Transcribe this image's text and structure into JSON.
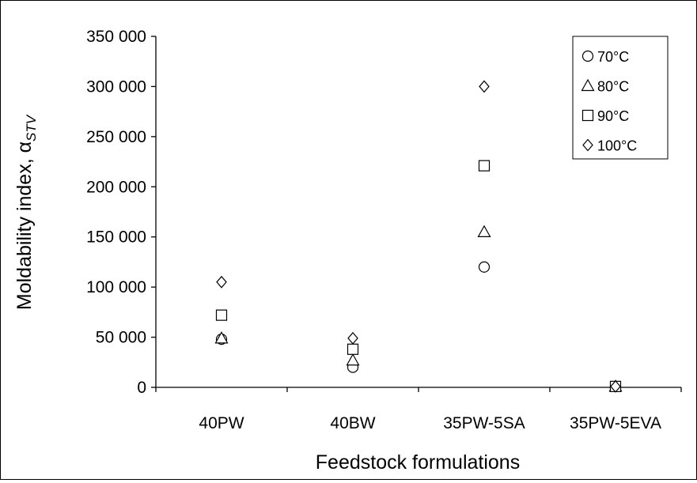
{
  "chart_data": {
    "type": "scatter",
    "title": "",
    "xlabel": "Feedstock formulations",
    "ylabel": "Moldability index, α",
    "ylabel_subscript": "STV",
    "categories": [
      "40PW",
      "40BW",
      "35PW-5SA",
      "35PW-5EVA"
    ],
    "ylim": [
      0,
      350000
    ],
    "yticks": [
      0,
      50000,
      100000,
      150000,
      200000,
      250000,
      300000,
      350000
    ],
    "ytick_labels": [
      "0",
      "50 000",
      "100 000",
      "150 000",
      "200 000",
      "250 000",
      "300 000",
      "350 000"
    ],
    "grid": false,
    "legend_position": "top-right",
    "series": [
      {
        "name": "70°C",
        "marker": "circle",
        "values": [
          48000,
          20000,
          120000,
          900
        ]
      },
      {
        "name": "80°C",
        "marker": "triangle",
        "values": [
          49000,
          27000,
          155000,
          900
        ]
      },
      {
        "name": "90°C",
        "marker": "square",
        "values": [
          72000,
          38000,
          221000,
          900
        ]
      },
      {
        "name": "100°C",
        "marker": "diamond",
        "values": [
          105000,
          49000,
          300000,
          900
        ]
      }
    ]
  }
}
